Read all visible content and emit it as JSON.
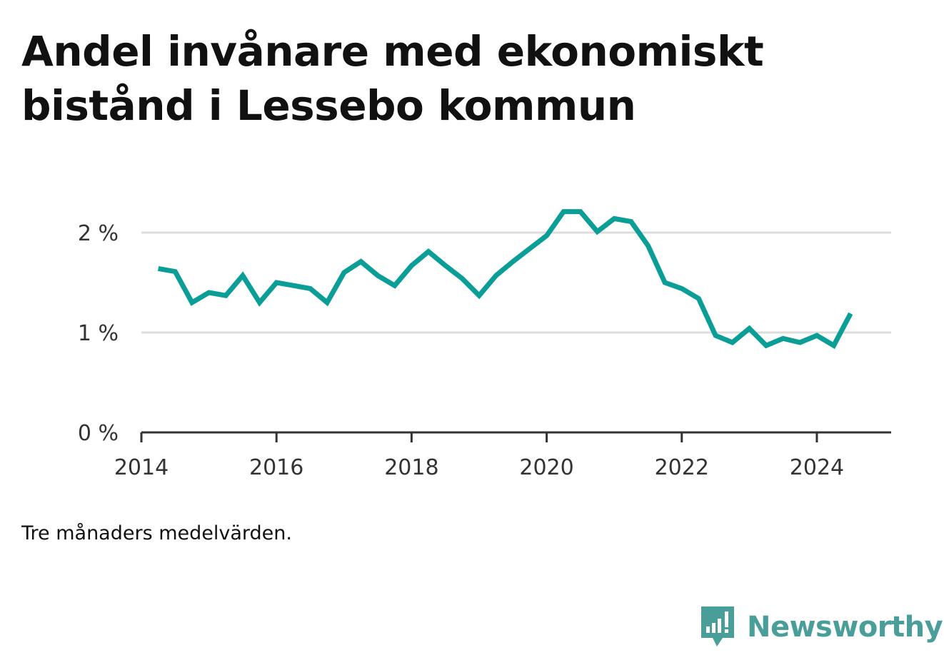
{
  "title": "Andel invånare med ekonomiskt bistånd i Lessebo kommun",
  "note": "Tre månaders medelvärden.",
  "brand": {
    "name": "Newsworthy",
    "color": "#4a9e9a"
  },
  "colors": {
    "line": "#0a9e96",
    "grid": "#dddddd",
    "axis": "#333333"
  },
  "chart_data": {
    "type": "line",
    "title": "Andel invånare med ekonomiskt bistånd i Lessebo kommun",
    "xlabel": "",
    "ylabel": "",
    "x_ticks": [
      2014,
      2016,
      2018,
      2020,
      2022,
      2024
    ],
    "y_ticks": [
      "0 %",
      "1 %",
      "2 %"
    ],
    "y_tick_values": [
      0,
      1,
      2
    ],
    "xlim": [
      2014,
      2025.1
    ],
    "ylim": [
      0,
      2
    ],
    "grid": "horizontal",
    "series": [
      {
        "x": [
          "2014-04",
          "2014-07",
          "2014-10",
          "2015-01",
          "2015-04",
          "2015-07",
          "2015-10",
          "2016-01",
          "2016-04",
          "2016-07",
          "2016-10",
          "2017-01",
          "2017-04",
          "2017-07",
          "2017-10",
          "2018-01",
          "2018-04",
          "2018-07",
          "2018-10",
          "2019-01",
          "2019-04",
          "2019-07",
          "2019-10",
          "2020-01",
          "2020-04",
          "2020-07",
          "2020-10",
          "2021-01",
          "2021-04",
          "2021-07",
          "2021-10",
          "2022-01",
          "2022-04",
          "2022-07",
          "2022-10",
          "2023-01",
          "2023-04",
          "2023-07",
          "2023-10",
          "2024-01",
          "2024-04",
          "2024-07"
        ],
        "y": [
          1.64,
          1.61,
          1.3,
          1.4,
          1.37,
          1.57,
          1.3,
          1.5,
          1.47,
          1.44,
          1.3,
          1.6,
          1.71,
          1.57,
          1.47,
          1.67,
          1.81,
          1.67,
          1.54,
          1.37,
          1.57,
          1.71,
          1.84,
          1.97,
          2.21,
          2.21,
          2.01,
          2.14,
          2.11,
          1.87,
          1.5,
          1.44,
          1.34,
          0.97,
          0.9,
          1.04,
          0.87,
          0.94,
          0.9,
          0.97,
          0.87,
          1.19
        ]
      }
    ]
  }
}
